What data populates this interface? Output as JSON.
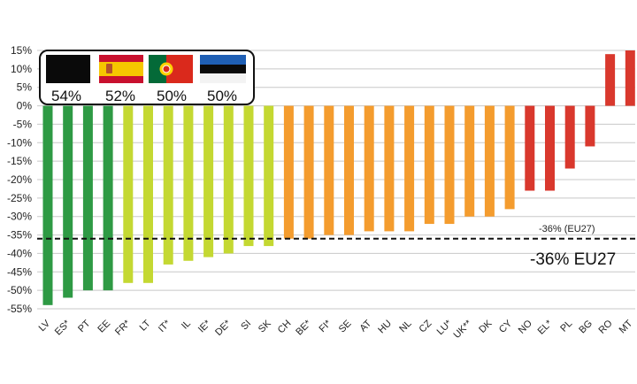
{
  "chart_data": {
    "type": "bar",
    "categories": [
      "LV",
      "ES*",
      "PT",
      "EE",
      "FR*",
      "LT",
      "IT*",
      "IL",
      "IE*",
      "DE*",
      "SI",
      "SK",
      "CH",
      "BE*",
      "FI*",
      "SE",
      "AT",
      "HU",
      "NL",
      "CZ",
      "LU*",
      "UK**",
      "DK",
      "CY",
      "NO",
      "EL*",
      "PL",
      "BG",
      "RO",
      "MT"
    ],
    "values": [
      -54,
      -52,
      -50,
      -50,
      -48,
      -48,
      -43,
      -42,
      -41,
      -40,
      -38,
      -38,
      -36,
      -36,
      -35,
      -35,
      -34,
      -34,
      -34,
      -32,
      -32,
      -30,
      -30,
      -28,
      -23,
      -23,
      -17,
      -11,
      14,
      15
    ],
    "bar_colors": [
      "#2e9a44",
      "#2e9a44",
      "#2e9a44",
      "#2e9a44",
      "#c4d832",
      "#c4d832",
      "#c4d832",
      "#c4d832",
      "#c4d832",
      "#c4d832",
      "#c4d832",
      "#c4d832",
      "#f49c2e",
      "#f49c2e",
      "#f49c2e",
      "#f49c2e",
      "#f49c2e",
      "#f49c2e",
      "#f49c2e",
      "#f49c2e",
      "#f49c2e",
      "#f49c2e",
      "#f49c2e",
      "#f49c2e",
      "#d9382d",
      "#d9382d",
      "#d9382d",
      "#d9382d",
      "#d9382d",
      "#d9382d"
    ],
    "ylim": [
      -55,
      15
    ],
    "yticks": [
      "15%",
      "10%",
      "5%",
      "0%",
      "-5%",
      "-10%",
      "-15%",
      "-20%",
      "-25%",
      "-30%",
      "-35%",
      "-40%",
      "-45%",
      "-50%",
      "-55%"
    ],
    "ytick_values": [
      15,
      10,
      5,
      0,
      -5,
      -10,
      -15,
      -20,
      -25,
      -30,
      -35,
      -40,
      -45,
      -50,
      -55
    ],
    "grid": true,
    "reference_line": {
      "value": -36,
      "label_small": "-36% (EU27)",
      "label_big": "-36% EU27",
      "style": "dashed"
    },
    "inset": [
      {
        "flag": "black-flag",
        "value": "54%"
      },
      {
        "flag": "spain-flag",
        "value": "52%"
      },
      {
        "flag": "portugal-flag",
        "value": "50%"
      },
      {
        "flag": "estonia-flag",
        "value": "50%"
      }
    ]
  }
}
